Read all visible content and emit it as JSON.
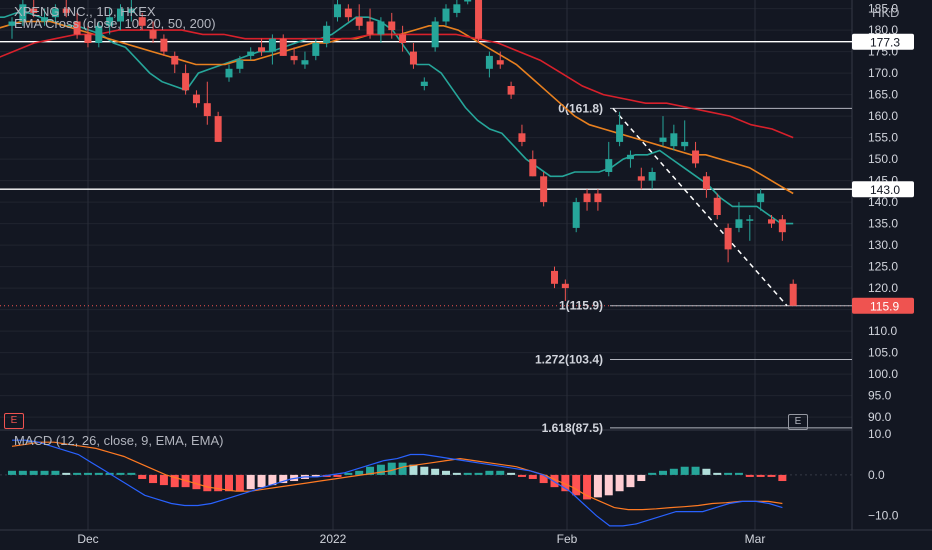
{
  "header": {
    "symbol_line": "XPENG INC., 1D, HKEX",
    "indicator_line": "EMA Cross (close, 10, 20, 50, 200)",
    "macd_line": "MACD (12, 26, close, 9, EMA, EMA)",
    "currency": "HKD",
    "event_marker": "E"
  },
  "colors": {
    "background": "#131722",
    "up": "#26a69a",
    "down": "#ef5350",
    "ema_short": "#26a69a",
    "ema_mid": "#e8801f",
    "ema_long": "#d8202b",
    "macd_line": "#2962ff",
    "signal_line": "#ff7a22",
    "grid": "#2a2e39"
  },
  "chart_data": [
    {
      "type": "candlestick",
      "title": "XPENG INC., 1D, HKEX",
      "currency": "HKD",
      "ylim": [
        87,
        187
      ],
      "yticks": [
        90,
        95,
        100,
        105,
        110,
        115,
        120,
        125,
        130,
        135,
        140,
        145,
        150,
        155,
        160,
        165,
        170,
        175,
        180,
        185
      ],
      "x_labels": [
        "Dec",
        "2022",
        "Feb",
        "Mar"
      ],
      "price_labels": [
        {
          "text": "177.3",
          "value": 177.3,
          "style": "white"
        },
        {
          "text": "143.0",
          "value": 143.0,
          "style": "white"
        },
        {
          "text": "115.9",
          "value": 115.9,
          "style": "red"
        }
      ],
      "horizontal_lines": [
        177.3,
        143.0
      ],
      "fib_levels": [
        {
          "label": "0(161.8)",
          "value": 161.8
        },
        {
          "label": "1(115.9)",
          "value": 115.9
        },
        {
          "label": "1.272(103.4)",
          "value": 103.4
        },
        {
          "label": "1.618(87.5)",
          "value": 87.5
        }
      ],
      "candles": [
        {
          "o": 181,
          "h": 183,
          "l": 178,
          "c": 182
        },
        {
          "o": 182,
          "h": 187,
          "l": 181,
          "c": 186
        },
        {
          "o": 185,
          "h": 187,
          "l": 183,
          "c": 184
        },
        {
          "o": 182,
          "h": 185,
          "l": 181,
          "c": 183
        },
        {
          "o": 183,
          "h": 186,
          "l": 182,
          "c": 185
        },
        {
          "o": 185,
          "h": 187,
          "l": 183,
          "c": 184
        },
        {
          "o": 182,
          "h": 184,
          "l": 178,
          "c": 179
        },
        {
          "o": 179,
          "h": 181,
          "l": 176,
          "c": 177
        },
        {
          "o": 177,
          "h": 182,
          "l": 176,
          "c": 181
        },
        {
          "o": 181,
          "h": 185,
          "l": 179,
          "c": 183
        },
        {
          "o": 182,
          "h": 186,
          "l": 180,
          "c": 185
        },
        {
          "o": 184,
          "h": 187,
          "l": 182,
          "c": 185
        },
        {
          "o": 183,
          "h": 184,
          "l": 180,
          "c": 181
        },
        {
          "o": 180,
          "h": 182,
          "l": 177,
          "c": 178
        },
        {
          "o": 178,
          "h": 179,
          "l": 174,
          "c": 175
        },
        {
          "o": 174,
          "h": 175,
          "l": 170,
          "c": 172
        },
        {
          "o": 170,
          "h": 172,
          "l": 165,
          "c": 166
        },
        {
          "o": 165,
          "h": 166,
          "l": 162,
          "c": 163
        },
        {
          "o": 163,
          "h": 168,
          "l": 158,
          "c": 160
        },
        {
          "o": 160,
          "h": 161,
          "l": 154,
          "c": 154
        },
        {
          "o": 169,
          "h": 172,
          "l": 168,
          "c": 171
        },
        {
          "o": 171,
          "h": 174,
          "l": 170,
          "c": 173
        },
        {
          "o": 174,
          "h": 176,
          "l": 173,
          "c": 175
        },
        {
          "o": 176,
          "h": 178,
          "l": 174,
          "c": 175
        },
        {
          "o": 175,
          "h": 179,
          "l": 172,
          "c": 178
        },
        {
          "o": 178,
          "h": 179,
          "l": 174,
          "c": 174
        },
        {
          "o": 174,
          "h": 176,
          "l": 172,
          "c": 173
        },
        {
          "o": 172,
          "h": 175,
          "l": 171,
          "c": 173
        },
        {
          "o": 174,
          "h": 178,
          "l": 173,
          "c": 177
        },
        {
          "o": 177,
          "h": 182,
          "l": 176,
          "c": 181
        },
        {
          "o": 183,
          "h": 188,
          "l": 182,
          "c": 186
        },
        {
          "o": 185,
          "h": 186,
          "l": 182,
          "c": 183
        },
        {
          "o": 183,
          "h": 186,
          "l": 180,
          "c": 181
        },
        {
          "o": 182,
          "h": 185,
          "l": 178,
          "c": 179
        },
        {
          "o": 179,
          "h": 183,
          "l": 177,
          "c": 182
        },
        {
          "o": 182,
          "h": 184,
          "l": 178,
          "c": 180
        },
        {
          "o": 179,
          "h": 181,
          "l": 175,
          "c": 177
        },
        {
          "o": 175,
          "h": 177,
          "l": 171,
          "c": 172
        },
        {
          "o": 167,
          "h": 169,
          "l": 166,
          "c": 168
        },
        {
          "o": 176,
          "h": 183,
          "l": 175,
          "c": 182
        },
        {
          "o": 182,
          "h": 186,
          "l": 181,
          "c": 185
        },
        {
          "o": 184,
          "h": 187,
          "l": 183,
          "c": 186
        },
        {
          "o": 187,
          "h": 188,
          "l": 186,
          "c": 187
        },
        {
          "o": 187,
          "h": 188,
          "l": 177,
          "c": 178
        },
        {
          "o": 171,
          "h": 175,
          "l": 169,
          "c": 174
        },
        {
          "o": 173,
          "h": 175,
          "l": 171,
          "c": 172
        },
        {
          "o": 167,
          "h": 168,
          "l": 164,
          "c": 165
        },
        {
          "o": 156,
          "h": 158,
          "l": 153,
          "c": 154
        },
        {
          "o": 150,
          "h": 152,
          "l": 146,
          "c": 146
        },
        {
          "o": 146,
          "h": 147,
          "l": 139,
          "c": 140
        },
        {
          "o": 124,
          "h": 125,
          "l": 120,
          "c": 121
        },
        {
          "o": 121,
          "h": 122,
          "l": 117,
          "c": 120
        },
        {
          "o": 134,
          "h": 141,
          "l": 133,
          "c": 140
        },
        {
          "o": 142,
          "h": 143,
          "l": 138,
          "c": 140
        },
        {
          "o": 142,
          "h": 143,
          "l": 138,
          "c": 140
        },
        {
          "o": 147,
          "h": 154,
          "l": 146,
          "c": 150
        },
        {
          "o": 154,
          "h": 161,
          "l": 153,
          "c": 158
        },
        {
          "o": 150,
          "h": 152,
          "l": 148,
          "c": 151
        },
        {
          "o": 146,
          "h": 148,
          "l": 143,
          "c": 145
        },
        {
          "o": 145,
          "h": 148,
          "l": 143,
          "c": 147
        },
        {
          "o": 154,
          "h": 160,
          "l": 153,
          "c": 155
        },
        {
          "o": 153,
          "h": 158,
          "l": 152,
          "c": 156
        },
        {
          "o": 153,
          "h": 159,
          "l": 152,
          "c": 154
        },
        {
          "o": 152,
          "h": 154,
          "l": 148,
          "c": 149
        },
        {
          "o": 146,
          "h": 147,
          "l": 141,
          "c": 143
        },
        {
          "o": 141,
          "h": 142,
          "l": 136,
          "c": 137
        },
        {
          "o": 134,
          "h": 135,
          "l": 126,
          "c": 129
        },
        {
          "o": 134,
          "h": 140,
          "l": 133,
          "c": 136
        },
        {
          "o": 136,
          "h": 137,
          "l": 131,
          "c": 136
        },
        {
          "o": 140,
          "h": 143,
          "l": 138,
          "c": 142
        },
        {
          "o": 136,
          "h": 137,
          "l": 134,
          "c": 135
        },
        {
          "o": 136,
          "h": 137,
          "l": 131,
          "c": 133
        },
        {
          "o": 121,
          "h": 122,
          "l": 115.9,
          "c": 115.9
        }
      ],
      "series": [
        {
          "name": "EMA 10",
          "values": [
            183,
            183,
            184,
            184,
            183,
            182,
            181,
            181,
            180,
            179,
            177,
            176,
            173,
            170,
            168,
            167,
            166,
            170,
            171,
            172,
            173,
            174,
            175,
            175,
            176,
            177,
            178,
            178,
            179,
            181,
            183,
            183,
            182,
            180,
            176,
            172,
            172,
            170,
            166,
            162,
            159,
            157,
            156,
            153,
            150,
            148,
            146,
            146,
            147,
            147,
            147,
            148,
            150,
            151,
            151,
            152,
            150,
            148,
            146,
            144,
            141,
            139,
            139,
            139,
            137,
            135,
            135
          ]
        },
        {
          "name": "EMA 20",
          "values": [
            180,
            181,
            182,
            182,
            182,
            181,
            180,
            179,
            178,
            177,
            176,
            175,
            174,
            173,
            172,
            172,
            172,
            173,
            173,
            174,
            175,
            176,
            177,
            177,
            178,
            178,
            179,
            179,
            179,
            180,
            181,
            181,
            180,
            178,
            176,
            174,
            172,
            169,
            166,
            163,
            160,
            158,
            157,
            156,
            155,
            154,
            153,
            152,
            151,
            151,
            150,
            149,
            148,
            146,
            144,
            142
          ]
        },
        {
          "name": "EMA 50",
          "values": [
            173,
            175,
            177,
            178,
            179,
            179,
            180,
            180,
            180,
            180,
            179,
            179,
            178,
            178,
            178,
            178,
            178,
            178,
            179,
            179,
            179,
            179,
            179,
            178,
            177,
            175,
            173,
            170,
            167,
            165,
            164,
            163,
            163,
            162,
            161,
            160,
            158,
            157,
            155
          ]
        }
      ]
    },
    {
      "type": "macd",
      "title": "MACD (12, 26, close, 9, EMA, EMA)",
      "ylim": [
        -13.5,
        11
      ],
      "yticks": [
        10.0,
        0.0,
        -10.0
      ],
      "ytick_labels": [
        "10.0",
        "0.0",
        "−10.0"
      ],
      "histogram": [
        1,
        1,
        1,
        1,
        1,
        0.5,
        0.5,
        0.5,
        0.5,
        0.5,
        0.5,
        0.5,
        -1,
        -2,
        -2.5,
        -3,
        -3,
        -3.5,
        -4,
        -4,
        -4,
        -4,
        -3.5,
        -3,
        -2.5,
        -2,
        -1.5,
        -1,
        -0.5,
        -0.5,
        -0.5,
        0.5,
        1,
        2,
        2.5,
        3,
        3,
        2.5,
        2,
        1.5,
        1,
        0.5,
        0.5,
        0.5,
        1,
        1,
        0.5,
        -0.5,
        -1,
        -2,
        -3,
        -4,
        -5,
        -6,
        -5.5,
        -5,
        -4,
        -3,
        -1.5,
        0.5,
        1,
        1.5,
        2,
        2,
        1.5,
        0.5,
        0.5,
        0.5,
        -0.5,
        -0.5,
        -0.5,
        -1.5
      ],
      "macd": [
        8.5,
        8.5,
        8,
        7,
        6,
        5,
        3,
        1,
        -1,
        -3,
        -5,
        -6,
        -7,
        -7.5,
        -7.5,
        -7,
        -6,
        -5,
        -4,
        -3,
        -2,
        -1,
        -0.5,
        -0.5,
        0,
        0.5,
        1.5,
        2.5,
        3.5,
        4,
        5,
        5,
        4.5,
        4,
        3.5,
        3,
        2.5,
        2,
        1.5,
        1,
        0,
        -2,
        -4,
        -7,
        -10,
        -12.5,
        -12.5,
        -12,
        -11,
        -10,
        -9,
        -9,
        -9,
        -8,
        -7,
        -6.5,
        -6.5,
        -7,
        -8
      ],
      "signal": [
        7,
        7.5,
        8,
        8,
        7.5,
        7,
        6.5,
        5.5,
        4.5,
        3,
        1.5,
        0,
        -1,
        -2,
        -3,
        -3.5,
        -4,
        -4,
        -3.5,
        -3,
        -2.5,
        -2,
        -1.5,
        -1,
        -0.5,
        0,
        0.5,
        1,
        2,
        2.5,
        3,
        3.5,
        4,
        3.5,
        3,
        2.5,
        2,
        1,
        0,
        -1.5,
        -3,
        -5,
        -6.5,
        -8,
        -8.5,
        -8.5,
        -8.3,
        -8,
        -7.8,
        -7.5,
        -7,
        -6.8,
        -6.5,
        -6.5,
        -6.5,
        -7
      ]
    }
  ]
}
